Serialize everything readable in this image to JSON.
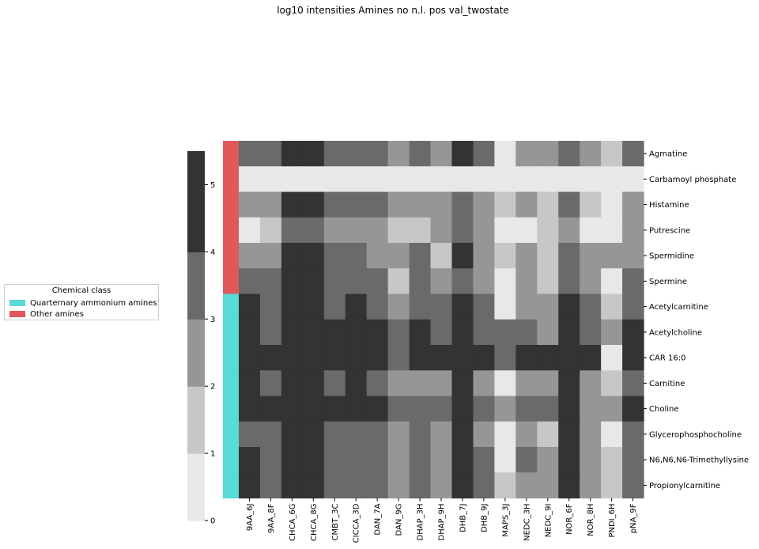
{
  "chart_data": {
    "type": "heatmap",
    "title": "log10 intensities Amines no n.l. pos val_twostate",
    "columns": [
      "9AA_6J",
      "9AA_8F",
      "CHCA_6G",
      "CHCA_8G",
      "CMBT_3C",
      "CICCA_3D",
      "DAN_7A",
      "DAN_9G",
      "DHAP_3H",
      "DHAP_9H",
      "DHB_7J",
      "DHB_9J",
      "MAPS_3J",
      "NEDC_3H",
      "NEDC_9I",
      "NOR_6F",
      "NOR_8H",
      "PNDI_6H",
      "pNA_9F"
    ],
    "rows": [
      "Agmatine",
      "Carbamoyl phosphate",
      "Histamine",
      "Putrescine",
      "Spermidine",
      "Spermine",
      "Acetylcarnitine",
      "Acetylcholine",
      "CAR 16:0",
      "Carnitine",
      "Choline",
      "Glycerophosphocholine",
      "N6,N6,N6-Trimethyllysine",
      "Propionylcarnitine"
    ],
    "row_classes": [
      "Other amines",
      "Other amines",
      "Other amines",
      "Other amines",
      "Other amines",
      "Other amines",
      "Quarternary ammonium amines",
      "Quarternary ammonium amines",
      "Quarternary ammonium amines",
      "Quarternary ammonium amines",
      "Quarternary ammonium amines",
      "Quarternary ammonium amines",
      "Quarternary ammonium amines",
      "Quarternary ammonium amines"
    ],
    "values": [
      [
        4,
        4,
        5,
        5,
        4,
        4,
        4,
        3,
        4,
        3,
        5,
        4,
        0,
        3,
        3,
        4,
        3,
        2,
        4
      ],
      [
        0,
        0,
        0,
        0,
        0,
        0,
        0,
        0,
        0,
        0,
        0,
        0,
        0,
        0,
        0,
        0,
        0,
        0,
        0
      ],
      [
        3,
        3,
        5,
        5,
        4,
        4,
        4,
        3,
        3,
        3,
        4,
        3,
        2,
        3,
        2,
        4,
        2,
        0,
        3
      ],
      [
        0,
        2,
        4,
        4,
        3,
        3,
        3,
        2,
        2,
        3,
        4,
        3,
        0,
        0,
        2,
        3,
        0,
        0,
        3
      ],
      [
        3,
        3,
        5,
        5,
        4,
        4,
        3,
        3,
        4,
        2,
        5,
        3,
        2,
        3,
        2,
        4,
        3,
        3,
        3
      ],
      [
        4,
        4,
        5,
        5,
        4,
        4,
        4,
        2,
        4,
        3,
        4,
        3,
        0,
        3,
        2,
        4,
        3,
        0,
        4
      ],
      [
        5,
        4,
        5,
        5,
        4,
        5,
        4,
        3,
        4,
        4,
        5,
        4,
        0,
        3,
        3,
        5,
        4,
        2,
        4
      ],
      [
        5,
        4,
        5,
        5,
        5,
        5,
        5,
        4,
        5,
        4,
        5,
        4,
        4,
        4,
        3,
        5,
        4,
        3,
        5
      ],
      [
        5,
        5,
        5,
        5,
        5,
        5,
        5,
        4,
        5,
        5,
        5,
        5,
        4,
        5,
        5,
        5,
        5,
        0,
        5
      ],
      [
        5,
        4,
        5,
        5,
        4,
        5,
        4,
        3,
        3,
        3,
        5,
        3,
        0,
        3,
        3,
        5,
        3,
        2,
        4
      ],
      [
        5,
        5,
        5,
        5,
        5,
        5,
        5,
        4,
        4,
        4,
        5,
        4,
        3,
        4,
        4,
        5,
        3,
        3,
        5
      ],
      [
        4,
        4,
        5,
        5,
        4,
        4,
        4,
        3,
        4,
        3,
        5,
        3,
        0,
        3,
        2,
        5,
        3,
        0,
        4
      ],
      [
        5,
        4,
        5,
        5,
        4,
        4,
        4,
        3,
        4,
        3,
        5,
        4,
        0,
        4,
        3,
        5,
        3,
        2,
        4
      ],
      [
        5,
        4,
        5,
        5,
        4,
        4,
        4,
        3,
        4,
        3,
        5,
        4,
        2,
        3,
        3,
        5,
        3,
        2,
        4
      ]
    ],
    "colorbar": {
      "ticks": [
        0,
        1,
        2,
        3,
        4,
        5
      ],
      "range": [
        0,
        5.5
      ],
      "colors": [
        "#e8e8e8",
        "#c7c7c7",
        "#969696",
        "#6a6a6a",
        "#333333"
      ]
    },
    "class_colors": {
      "Quarternary ammonium amines": "#56dbd8",
      "Other amines": "#e0585a"
    },
    "legend": {
      "title": "Chemical class",
      "placement": "left",
      "entries": [
        {
          "label": "Quarternary ammonium amines",
          "color": "#56dbd8"
        },
        {
          "label": "Other amines",
          "color": "#e0585a"
        }
      ]
    }
  }
}
